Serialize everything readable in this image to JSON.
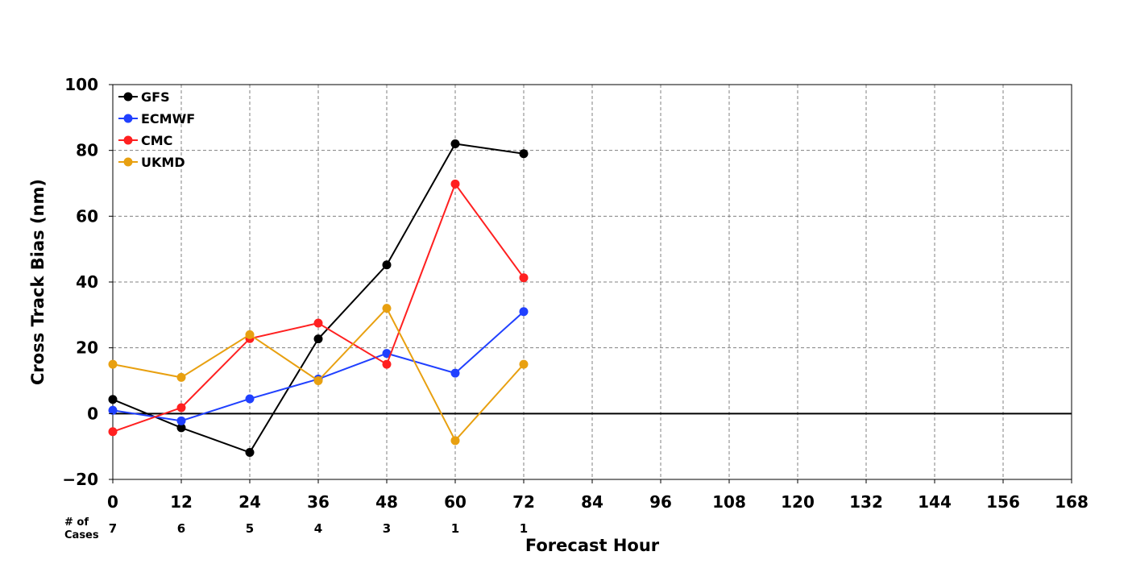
{
  "chart_data": {
    "type": "line",
    "xlabel": "Forecast Hour",
    "ylabel": "Cross Track Bias (nm)",
    "xlim": [
      0,
      168
    ],
    "ylim": [
      -20,
      100
    ],
    "x_ticks": [
      0,
      12,
      24,
      36,
      48,
      60,
      72,
      84,
      96,
      108,
      120,
      132,
      144,
      156,
      168
    ],
    "y_ticks": [
      -20,
      0,
      20,
      40,
      60,
      80,
      100
    ],
    "y_tick_labels": [
      "−20",
      "0",
      "20",
      "40",
      "60",
      "80",
      "100"
    ],
    "grid": true,
    "legend_position": "top-left",
    "cases_label_line1": "# of",
    "cases_label_line2": "Cases",
    "cases": [
      {
        "x": 0,
        "n": "7"
      },
      {
        "x": 12,
        "n": "6"
      },
      {
        "x": 24,
        "n": "5"
      },
      {
        "x": 36,
        "n": "4"
      },
      {
        "x": 48,
        "n": "3"
      },
      {
        "x": 60,
        "n": "1"
      },
      {
        "x": 72,
        "n": "1"
      }
    ],
    "x": [
      0,
      12,
      24,
      36,
      48,
      60,
      72
    ],
    "series": [
      {
        "name": "GFS",
        "color": "#000000",
        "values": [
          4.3,
          -4.3,
          -11.8,
          22.7,
          45.2,
          82.0,
          79.0
        ]
      },
      {
        "name": "ECMWF",
        "color": "#2040ff",
        "values": [
          1.0,
          -2.2,
          4.5,
          10.5,
          18.3,
          12.3,
          31.0
        ]
      },
      {
        "name": "CMC",
        "color": "#ff2020",
        "values": [
          -5.5,
          1.8,
          22.8,
          27.5,
          15.0,
          69.8,
          41.3
        ]
      },
      {
        "name": "UKMD",
        "color": "#e8a010",
        "values": [
          15.0,
          11.0,
          24.0,
          10.0,
          32.0,
          -8.2,
          15.0
        ]
      }
    ]
  }
}
